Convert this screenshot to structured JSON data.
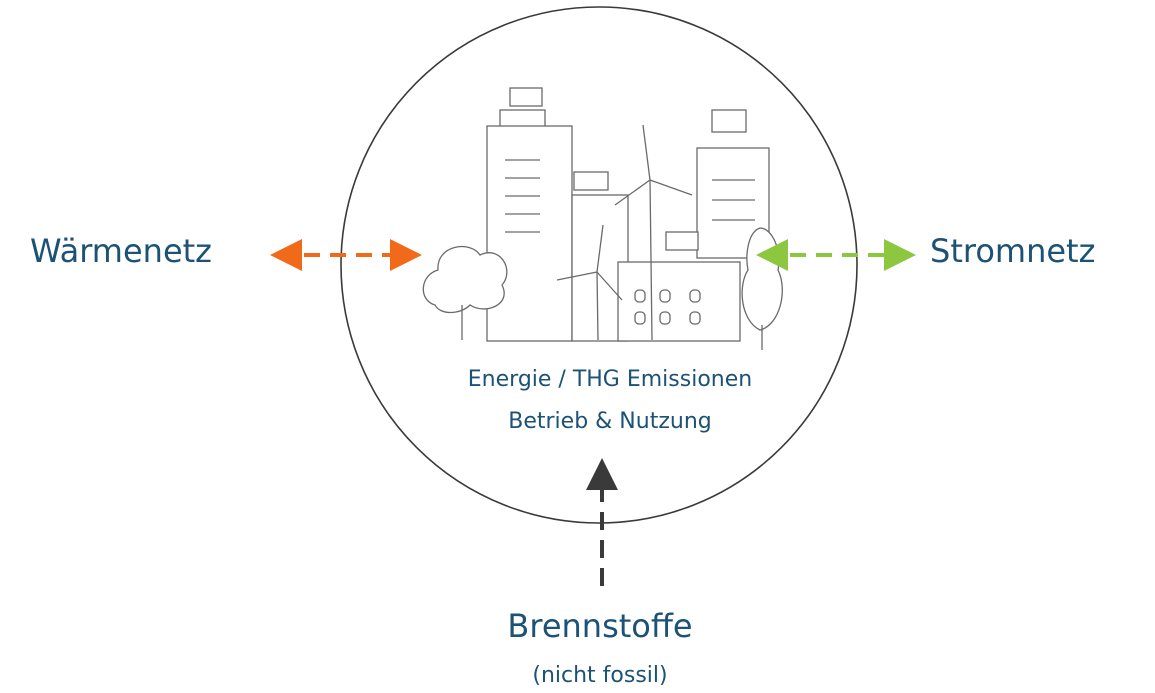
{
  "diagram": {
    "left_label": "Wärmenetz",
    "right_label": "Stromnetz",
    "center_lines": [
      "Energie / THG Emissionen",
      "Betrieb & Nutzung"
    ],
    "bottom_label": "Brennstoffe",
    "bottom_sublabel": "(nicht fossil)"
  }
}
